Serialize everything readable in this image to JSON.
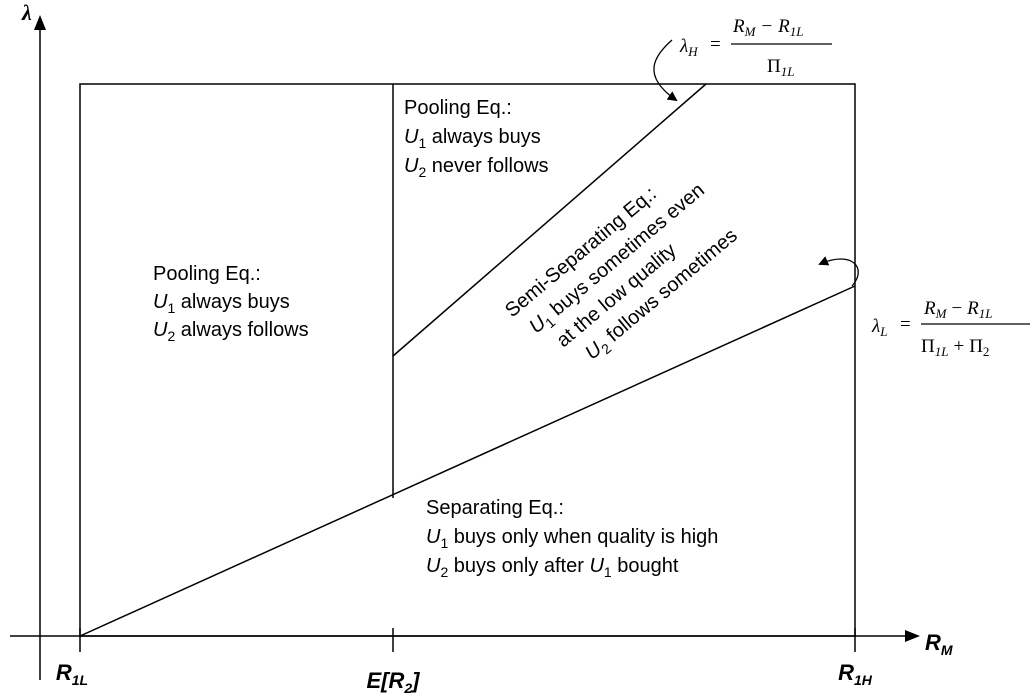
{
  "axes": {
    "y_label": "λ",
    "x_label": "R",
    "x_label_sub": "M",
    "ticks": {
      "r1l": {
        "main": "R",
        "sub": "1L"
      },
      "er2": {
        "text": "E[R",
        "sub": "2",
        "close": "]"
      },
      "r1h": {
        "main": "R",
        "sub": "1H"
      }
    }
  },
  "regions": {
    "pool_left": {
      "title": "Pooling Eq.:",
      "line1": {
        "var": "U",
        "sub": "1",
        "text": " always buys"
      },
      "line2": {
        "var": "U",
        "sub": "2",
        "text": " always follows"
      }
    },
    "pool_top": {
      "title": "Pooling Eq.:",
      "line1": {
        "var": "U",
        "sub": "1",
        "text": " always buys"
      },
      "line2": {
        "var": "U",
        "sub": "2",
        "text": " never follows"
      }
    },
    "semi": {
      "title": "Semi-Separating Eq.:",
      "line1": {
        "var": "U",
        "sub": "1",
        "text": " buys sometimes even"
      },
      "line2": "at the low quality",
      "line3": {
        "var": "U",
        "sub": "2",
        "text": " follows sometimes"
      }
    },
    "sep": {
      "title": "Separating Eq.:",
      "line1": {
        "var": "U",
        "sub": "1",
        "text": " buys only when quality is high"
      },
      "line2": {
        "var": "U",
        "sub": "2",
        "text": " buys only after ",
        "var2": "U",
        "sub2": "1",
        "text2": " bought"
      }
    }
  },
  "formulas": {
    "lambda_h": {
      "lhs": "λ",
      "lhs_sub": "H",
      "eq": "=",
      "num_a": "R",
      "num_a_sub": "M",
      "minus": "−",
      "num_b": "R",
      "num_b_sub": "1L",
      "den": "Π",
      "den_sub": "1L"
    },
    "lambda_l": {
      "lhs": "λ",
      "lhs_sub": "L",
      "eq": "=",
      "num_a": "R",
      "num_a_sub": "M",
      "minus": "−",
      "num_b": "R",
      "num_b_sub": "1L",
      "den_a": "Π",
      "den_a_sub": "1L",
      "plus": "+",
      "den_b": "Π",
      "den_b_sub": "2"
    }
  }
}
